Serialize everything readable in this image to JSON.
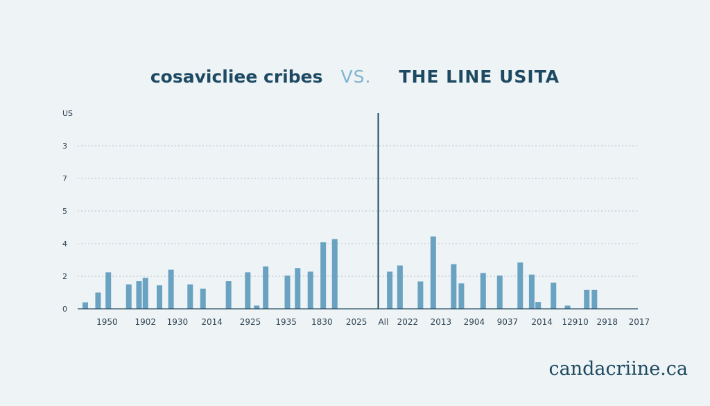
{
  "title": {
    "left": "cosavicliee cribes",
    "vs": "VS.",
    "right": "THE LINE USITA"
  },
  "watermark": "candacriine.ca",
  "colors": {
    "bar": "#6aa2c2",
    "divider": "#1d4a62",
    "grid": "#b6c2ca",
    "axis": "#2a4e62",
    "text": "#2f4452"
  },
  "chart_data": {
    "type": "bar",
    "grid": "horizontal-dotted",
    "ylim": [
      0,
      5
    ],
    "y_axis_labels": [
      {
        "label": "0",
        "value": 0
      },
      {
        "label": "2",
        "value": 1
      },
      {
        "label": "4",
        "value": 2
      },
      {
        "label": "5",
        "value": 3
      },
      {
        "label": "7",
        "value": 4
      },
      {
        "label": "3",
        "value": 5
      },
      {
        "label": "US",
        "value": 6
      }
    ],
    "x_range": [
      0,
      21.5
    ],
    "x_tick_labels": [
      {
        "label": "1950",
        "x": 0.85
      },
      {
        "label": "1902",
        "x": 2.35
      },
      {
        "label": "1930",
        "x": 3.6
      },
      {
        "label": "2014",
        "x": 4.95
      },
      {
        "label": "2925",
        "x": 6.45
      },
      {
        "label": "1935",
        "x": 7.85
      },
      {
        "label": "1830",
        "x": 9.25
      },
      {
        "label": "2025",
        "x": 10.6
      },
      {
        "label": "All",
        "x": 11.65
      },
      {
        "label": "2022",
        "x": 12.6
      },
      {
        "label": "2013",
        "x": 13.9
      },
      {
        "label": "2904",
        "x": 15.2
      },
      {
        "label": "9037",
        "x": 16.5
      },
      {
        "label": "2014",
        "x": 17.85
      },
      {
        "label": "12910",
        "x": 19.15
      },
      {
        "label": "2918",
        "x": 20.4
      },
      {
        "label": "2017",
        "x": 21.65
      }
    ],
    "divider_x": 11.45,
    "bars": [
      {
        "x": 0.0,
        "value": 0.2
      },
      {
        "x": 0.5,
        "value": 0.5
      },
      {
        "x": 0.9,
        "value": 1.12
      },
      {
        "x": 1.7,
        "value": 0.75
      },
      {
        "x": 2.1,
        "value": 0.85
      },
      {
        "x": 2.35,
        "value": 0.95
      },
      {
        "x": 2.9,
        "value": 0.72
      },
      {
        "x": 3.35,
        "value": 1.2
      },
      {
        "x": 4.1,
        "value": 0.75
      },
      {
        "x": 4.6,
        "value": 0.62
      },
      {
        "x": 5.6,
        "value": 0.85
      },
      {
        "x": 6.35,
        "value": 1.12
      },
      {
        "x": 6.7,
        "value": 0.1
      },
      {
        "x": 7.05,
        "value": 1.3
      },
      {
        "x": 7.9,
        "value": 1.02
      },
      {
        "x": 8.3,
        "value": 1.25
      },
      {
        "x": 8.8,
        "value": 1.14
      },
      {
        "x": 9.3,
        "value": 2.04
      },
      {
        "x": 9.75,
        "value": 2.14
      },
      {
        "x": 11.9,
        "value": 1.14
      },
      {
        "x": 12.3,
        "value": 1.33
      },
      {
        "x": 13.1,
        "value": 0.84
      },
      {
        "x": 13.6,
        "value": 2.22
      },
      {
        "x": 14.4,
        "value": 1.37
      },
      {
        "x": 14.7,
        "value": 0.78
      },
      {
        "x": 15.55,
        "value": 1.1
      },
      {
        "x": 16.2,
        "value": 1.02
      },
      {
        "x": 17.0,
        "value": 1.42
      },
      {
        "x": 17.45,
        "value": 1.05
      },
      {
        "x": 17.7,
        "value": 0.21
      },
      {
        "x": 18.3,
        "value": 0.8
      },
      {
        "x": 18.85,
        "value": 0.1
      },
      {
        "x": 19.6,
        "value": 0.58
      },
      {
        "x": 19.9,
        "value": 0.58
      }
    ]
  }
}
